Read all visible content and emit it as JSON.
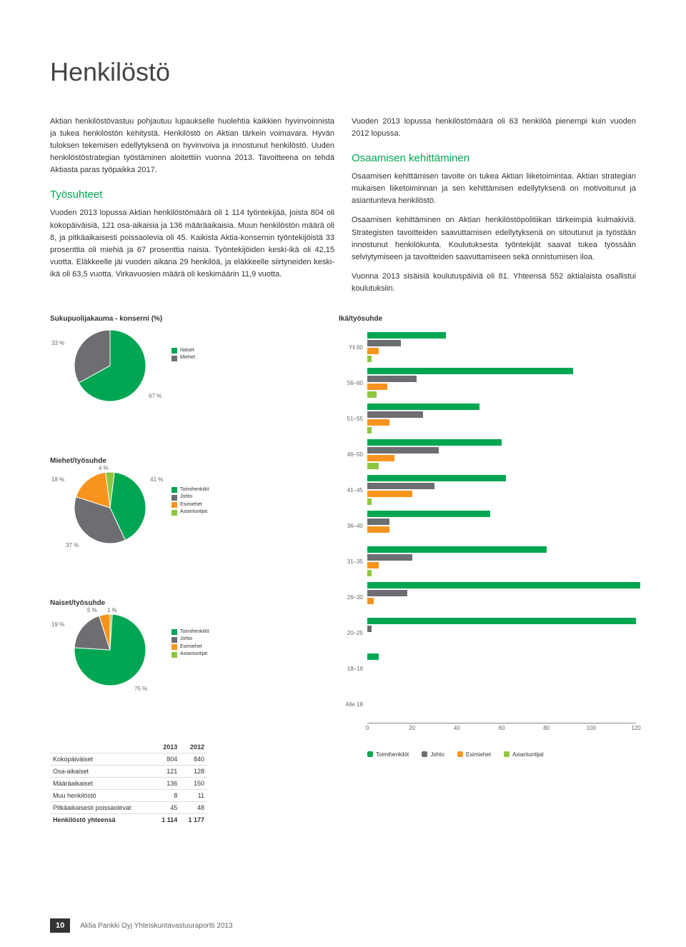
{
  "page_title": "Henkilöstö",
  "intro_p1": "Aktian henkilöstövastuu pohjautuu lupaukselle huolehtia kaikkien hyvinvoinnista ja tukea henkilöstön kehitystä. Henkilöstö on Aktian tärkein voimavara. Hyvän tuloksen tekemisen edellytyksenä on hyvinvoiva ja innostunut henkilöstö. Uuden henkilöstöstrategian työstäminen aloitettiin vuonna 2013. Tavoitteena on tehdä Aktiasta paras työpaikka 2017.",
  "tyosuhteet_heading": "Työsuhteet",
  "tyosuhteet_p1": "Vuoden 2013 lopussa Aktian henkilöstömäärä oli 1 114 työntekijää, joista 804 oli kokopäiväisiä, 121 osa-aikaisia ja 136 määräaikaisia. Muun henkilöstön määrä oli 8, ja pitkäaikaisesti poissaolevia oli 45. Kaikista Aktia-konsernin työntekijöistä 33 prosenttia oli miehiä ja 67 prosenttia naisia. Työntekijöiden keski-ikä oli 42,15 vuotta. Eläkkeelle jäi vuoden aikana 29 henkilöä, ja eläkkeelle siirtyneiden keski-ikä oli 63,5 vuotta. Virkavuosien määrä oli keskimäärin 11,9 vuotta.",
  "right_intro": "Vuoden 2013 lopussa henkilöstömäärä oli 63 henkilöä pienempi kuin vuoden 2012 lopussa.",
  "osaaminen_heading": "Osaamisen kehittäminen",
  "osaaminen_p1": "Osaamisen kehittämisen tavoite on tukea Aktian liiketoimintaa. Aktian strategian mukaisen liiketoiminnan ja sen kehittämisen edellytyksenä on motivoitunut ja asiantunteva henkilöstö.",
  "osaaminen_p2": "Osaamisen kehittäminen on Aktian henkilöstöpolitiikan tärkeimpiä kulmakiviä. Strategisten tavoitteiden saavuttamisen edellytyksenä on sitoutunut ja työstään innostunut henkilökunta. Koulutuksesta työntekijät saavat tukea työssään selviytymiseen ja tavoitteiden saavuttamiseen sekä onnistumisen iloa.",
  "osaaminen_p3": "Vuonna 2013 sisäisiä koulutuspäiviä oli 81. Yhteensä 552 aktialaista osallistui koulutuksiin.",
  "colors": {
    "green": "#00a651",
    "gray": "#6d6e71",
    "orange": "#f7941e",
    "lightgreen": "#8dc63f"
  },
  "gender_pie": {
    "title": "Sukupuolijakauma - konserni (%)",
    "slices": [
      {
        "label": "Naiset",
        "pct": 67,
        "color": "#00a651"
      },
      {
        "label": "Miehet",
        "pct": 33,
        "color": "#6d6e71"
      }
    ],
    "label_pct_a": "33 %",
    "label_pct_b": "67 %"
  },
  "men_pie": {
    "title": "Miehet/työsuhde",
    "slices": [
      {
        "label": "Toimihenkilöt",
        "pct": 41,
        "color": "#00a651"
      },
      {
        "label": "Johto",
        "pct": 37,
        "color": "#6d6e71"
      },
      {
        "label": "Esimiehet",
        "pct": 18,
        "color": "#f7941e"
      },
      {
        "label": "Asiantuntijat",
        "pct": 4,
        "color": "#8dc63f"
      }
    ],
    "pct_labels": {
      "a": "4 %",
      "b": "41 %",
      "c": "18 %",
      "d": "37 %"
    }
  },
  "women_pie": {
    "title": "Naiset/työsuhde",
    "slices": [
      {
        "label": "Toimihenkilöt",
        "pct": 75,
        "color": "#00a651"
      },
      {
        "label": "Johto",
        "pct": 19,
        "color": "#6d6e71"
      },
      {
        "label": "Esimiehet",
        "pct": 5,
        "color": "#f7941e"
      },
      {
        "label": "Asiantuntijat",
        "pct": 1,
        "color": "#8dc63f"
      }
    ],
    "pct_labels": {
      "a": "5 %",
      "b": "1 %",
      "c": "19 %",
      "d": "75 %"
    }
  },
  "staff_table": {
    "columns": [
      "",
      "2013",
      "2012"
    ],
    "rows": [
      [
        "Kokopäiväiset",
        "804",
        "840"
      ],
      [
        "Osa-aikaiset",
        "121",
        "128"
      ],
      [
        "Määräaikaiset",
        "136",
        "150"
      ],
      [
        "Muu henkilöstö",
        "8",
        "11"
      ],
      [
        "Pitkäaikaisesti poissaolevat",
        "45",
        "48"
      ]
    ],
    "total": [
      "Henkilöstö yhteensä",
      "1 114",
      "1 177"
    ]
  },
  "age_chart": {
    "title": "Ikä/työsuhde",
    "xmax": 120,
    "xticks": [
      0,
      20,
      40,
      60,
      80,
      100,
      120
    ],
    "series": [
      {
        "label": "Toimihenkilöt",
        "color": "#00a651"
      },
      {
        "label": "Johto",
        "color": "#6d6e71"
      },
      {
        "label": "Esimiehet",
        "color": "#f7941e"
      },
      {
        "label": "Asiantuntijat",
        "color": "#8dc63f"
      }
    ],
    "groups": [
      {
        "label": "Yli 60",
        "values": [
          35,
          15,
          5,
          2
        ]
      },
      {
        "label": "56–60",
        "values": [
          92,
          22,
          9,
          4
        ]
      },
      {
        "label": "51–55",
        "values": [
          50,
          25,
          10,
          2
        ]
      },
      {
        "label": "46–50",
        "values": [
          60,
          32,
          12,
          5
        ]
      },
      {
        "label": "41–45",
        "values": [
          62,
          30,
          20,
          2
        ]
      },
      {
        "label": "36–40",
        "values": [
          55,
          10,
          10,
          0
        ]
      },
      {
        "label": "31–35",
        "values": [
          80,
          20,
          5,
          2
        ]
      },
      {
        "label": "26–30",
        "values": [
          122,
          18,
          3,
          0
        ]
      },
      {
        "label": "20–25",
        "values": [
          120,
          2,
          0,
          0
        ]
      },
      {
        "label": "18–19",
        "values": [
          5,
          0,
          0,
          0
        ]
      },
      {
        "label": "Alle 18",
        "values": [
          0,
          0,
          0,
          0
        ]
      }
    ]
  },
  "footer": {
    "page_number": "10",
    "report_title": "Aktia Pankki Oyj Yhteiskuntavastuuraportti 2013"
  }
}
